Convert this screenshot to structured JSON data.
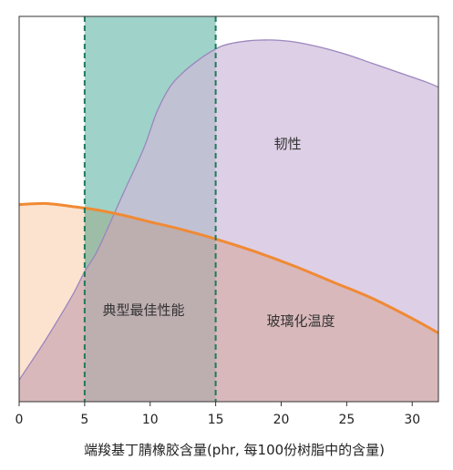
{
  "chart_data": {
    "type": "area",
    "title": "",
    "xlabel": "端羧基丁腈橡胶含量(phr, 每100份树脂中的含量)",
    "ylabel": "",
    "xlim": [
      0,
      32
    ],
    "x_ticks": [
      0,
      5,
      10,
      15,
      20,
      25,
      30
    ],
    "x_tick_labels": [
      "0",
      "5",
      "10",
      "15",
      "20",
      "25",
      "30"
    ],
    "grid": false,
    "legend": "none",
    "series": [
      {
        "name": "",
        "color": "#9b86be",
        "fill": "#d5c4e1",
        "x": [
          0,
          2,
          4,
          5,
          6,
          8,
          9.5,
          10.5,
          11.5,
          12.5,
          13.5,
          14.5,
          15.5,
          16.5,
          17.5,
          18.5,
          19.5,
          21,
          23,
          25,
          27,
          29,
          31,
          32
        ],
        "y": [
          0.06,
          0.17,
          0.29,
          0.36,
          0.42,
          0.58,
          0.7,
          0.8,
          0.87,
          0.91,
          0.94,
          0.965,
          0.984,
          0.993,
          0.998,
          1.0,
          1.0,
          0.995,
          0.98,
          0.96,
          0.935,
          0.91,
          0.885,
          0.87
        ]
      },
      {
        "name": "",
        "color": "#f08a34",
        "fill": "#f9d8be",
        "x": [
          0,
          2,
          4,
          6,
          8,
          10,
          12,
          15,
          18,
          21,
          24,
          27,
          30,
          32
        ],
        "y": [
          0.545,
          0.548,
          0.54,
          0.53,
          0.515,
          0.497,
          0.48,
          0.45,
          0.415,
          0.375,
          0.33,
          0.285,
          0.23,
          0.19
        ]
      }
    ],
    "highlight_band": {
      "x_start": 5,
      "x_end": 15,
      "color": "#a7dcd2",
      "line_color": "#1e7a5c"
    },
    "annotations": [
      {
        "text": "韧性",
        "x": 20.5,
        "y": 0.7
      },
      {
        "text": "典型最佳性能",
        "x": 9.5,
        "y": 0.24
      },
      {
        "text": "玻璃化温度",
        "x": 21.5,
        "y": 0.21
      }
    ]
  }
}
